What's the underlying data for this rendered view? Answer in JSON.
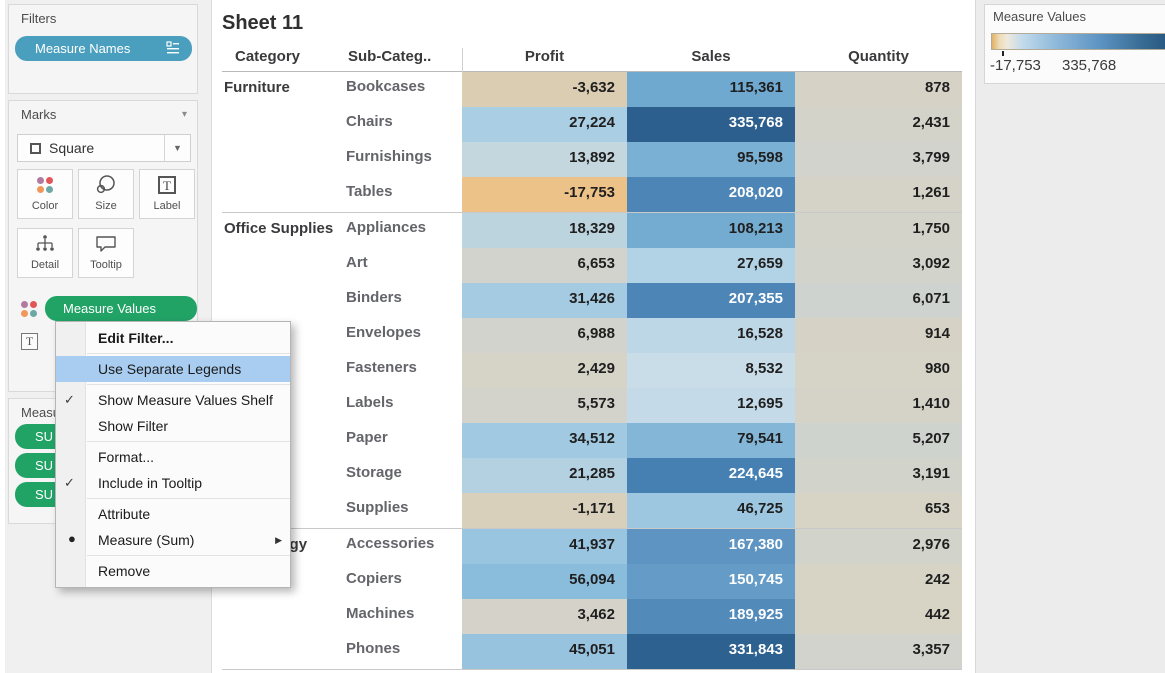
{
  "sidebar": {
    "filters": {
      "title": "Filters",
      "pill_label": "Measure Names"
    },
    "marks": {
      "title": "Marks",
      "mark_type": "Square",
      "buttons": {
        "color": "Color",
        "size": "Size",
        "label": "Label",
        "detail": "Detail",
        "tooltip": "Tooltip"
      },
      "pill_label": "Measure Values"
    },
    "shelf": {
      "title": "Measure Values",
      "pills": [
        "SU",
        "SU",
        "SU"
      ]
    }
  },
  "context_menu": {
    "highlight_color": "#a9cdf0",
    "items": [
      {
        "label": "Edit Filter...",
        "bold": true
      },
      {
        "separator": true
      },
      {
        "label": "Use Separate Legends",
        "highlighted": true
      },
      {
        "separator": true
      },
      {
        "label": "Show Measure Values Shelf",
        "checked": true
      },
      {
        "label": "Show Filter"
      },
      {
        "separator": true
      },
      {
        "label": "Format..."
      },
      {
        "label": "Include in Tooltip",
        "checked": true
      },
      {
        "separator": true
      },
      {
        "label": "Attribute"
      },
      {
        "label": "Measure (Sum)",
        "bullet": true,
        "submenu": true
      },
      {
        "separator": true
      },
      {
        "label": "Remove"
      }
    ]
  },
  "sheet": {
    "title": "Sheet 11",
    "columns": [
      "Category",
      "Sub-Categ..",
      "Profit",
      "Sales",
      "Quantity"
    ],
    "groups": [
      {
        "category": "Furniture",
        "rows": [
          {
            "sub": "Bookcases",
            "profit": "-3,632",
            "sales": "115,361",
            "qty": "878",
            "pc": "#dbcdb2",
            "sc": "#70a9d0",
            "qc": "#d6d3c6",
            "sw": false
          },
          {
            "sub": "Chairs",
            "profit": "27,224",
            "sales": "335,768",
            "qty": "2,431",
            "pc": "#aacee4",
            "sc": "#2c5f8d",
            "qc": "#d3d3ca",
            "sw": true
          },
          {
            "sub": "Furnishings",
            "profit": "13,892",
            "sales": "95,598",
            "qty": "3,799",
            "pc": "#c4d7de",
            "sc": "#7ab0d3",
            "qc": "#d1d3cc",
            "sw": false
          },
          {
            "sub": "Tables",
            "profit": "-17,753",
            "sales": "208,020",
            "qty": "1,261",
            "pc": "#edc288",
            "sc": "#4c85b6",
            "qc": "#d5d3c8",
            "sw": true
          }
        ]
      },
      {
        "category": "Office Supplies",
        "rows": [
          {
            "sub": "Appliances",
            "profit": "18,329",
            "sales": "108,213",
            "qty": "1,750",
            "pc": "#bcd4de",
            "sc": "#74abd1",
            "qc": "#d4d3c9",
            "sw": false
          },
          {
            "sub": "Art",
            "profit": "6,653",
            "sales": "27,659",
            "qty": "3,092",
            "pc": "#d2d3cc",
            "sc": "#b2d2e5",
            "qc": "#d2d3cb",
            "sw": false
          },
          {
            "sub": "Binders",
            "profit": "31,426",
            "sales": "207,355",
            "qty": "6,071",
            "pc": "#a5cbe3",
            "sc": "#4c85b6",
            "qc": "#ced3cf",
            "sw": true
          },
          {
            "sub": "Envelopes",
            "profit": "6,988",
            "sales": "16,528",
            "qty": "914",
            "pc": "#d2d3cc",
            "sc": "#bed7e7",
            "qc": "#d6d3c6",
            "sw": false
          },
          {
            "sub": "Fasteners",
            "profit": "2,429",
            "sales": "8,532",
            "qty": "980",
            "pc": "#d6d3c7",
            "sc": "#c9dde9",
            "qc": "#d6d3c7",
            "sw": false
          },
          {
            "sub": "Labels",
            "profit": "5,573",
            "sales": "12,695",
            "qty": "1,410",
            "pc": "#d3d3cb",
            "sc": "#c4dae8",
            "qc": "#d5d3c8",
            "sw": false
          },
          {
            "sub": "Paper",
            "profit": "34,512",
            "sales": "79,541",
            "qty": "5,207",
            "pc": "#a1c9e2",
            "sc": "#84b6d7",
            "qc": "#cfd3ce",
            "sw": false
          },
          {
            "sub": "Storage",
            "profit": "21,285",
            "sales": "224,645",
            "qty": "3,191",
            "pc": "#b4d1e2",
            "sc": "#4680b2",
            "qc": "#d2d3cb",
            "sw": true
          },
          {
            "sub": "Supplies",
            "profit": "-1,171",
            "sales": "46,725",
            "qty": "653",
            "pc": "#d9d0bc",
            "sc": "#9dc7e0",
            "qc": "#d7d4c6",
            "sw": false
          }
        ]
      },
      {
        "category": "Technology",
        "rows": [
          {
            "sub": "Accessories",
            "profit": "41,937",
            "sales": "167,380",
            "qty": "2,976",
            "pc": "#9ac5e0",
            "sc": "#5d94c2",
            "qc": "#d2d3cb",
            "sw": true
          },
          {
            "sub": "Copiers",
            "profit": "56,094",
            "sales": "150,745",
            "qty": "242",
            "pc": "#8abddc",
            "sc": "#659cc7",
            "qc": "#d7d4c6",
            "sw": true
          },
          {
            "sub": "Machines",
            "profit": "3,462",
            "sales": "189,925",
            "qty": "442",
            "pc": "#d5d3c9",
            "sc": "#528aba",
            "qc": "#d7d4c6",
            "sw": true
          },
          {
            "sub": "Phones",
            "profit": "45,051",
            "sales": "331,843",
            "qty": "3,357",
            "pc": "#97c3df",
            "sc": "#2d618f",
            "qc": "#d2d3cc",
            "sw": true
          }
        ]
      }
    ]
  },
  "legend": {
    "title": "Measure Values",
    "min_label": "-17,753",
    "max_label": "335,768",
    "gradient_stops": [
      "#e2b264",
      "#eddcb8",
      "#f0e9da",
      "#c2dbed",
      "#94bcdc",
      "#5b92c2",
      "#35688f",
      "#1f4e79"
    ]
  },
  "colors": {
    "teal_pill": "#4a9fbe",
    "green_pill": "#21a366",
    "menu_highlight": "#a9cdf0"
  }
}
